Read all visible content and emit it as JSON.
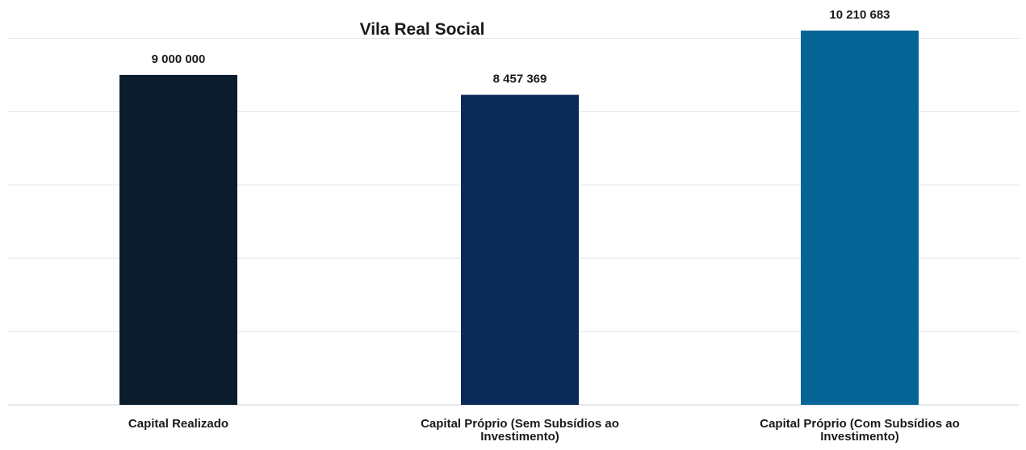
{
  "chart_data": {
    "type": "bar",
    "title": "Vila Real Social",
    "categories": [
      [
        "Capital Realizado"
      ],
      [
        "Capital Próprio (Sem Subsídios ao",
        "Investimento)"
      ],
      [
        "Capital Próprio (Com Subsídios ao",
        "Investimento)"
      ]
    ],
    "values": [
      9000000,
      8457369,
      10210683
    ],
    "value_labels": [
      "9 000 000",
      "8 457 369",
      "10 210 683"
    ],
    "colors": [
      "#0b1d2c",
      "#0b2a57",
      "#046596"
    ],
    "ylim": [
      0,
      11000000
    ],
    "grid": true,
    "xlabel": "",
    "ylabel": ""
  }
}
